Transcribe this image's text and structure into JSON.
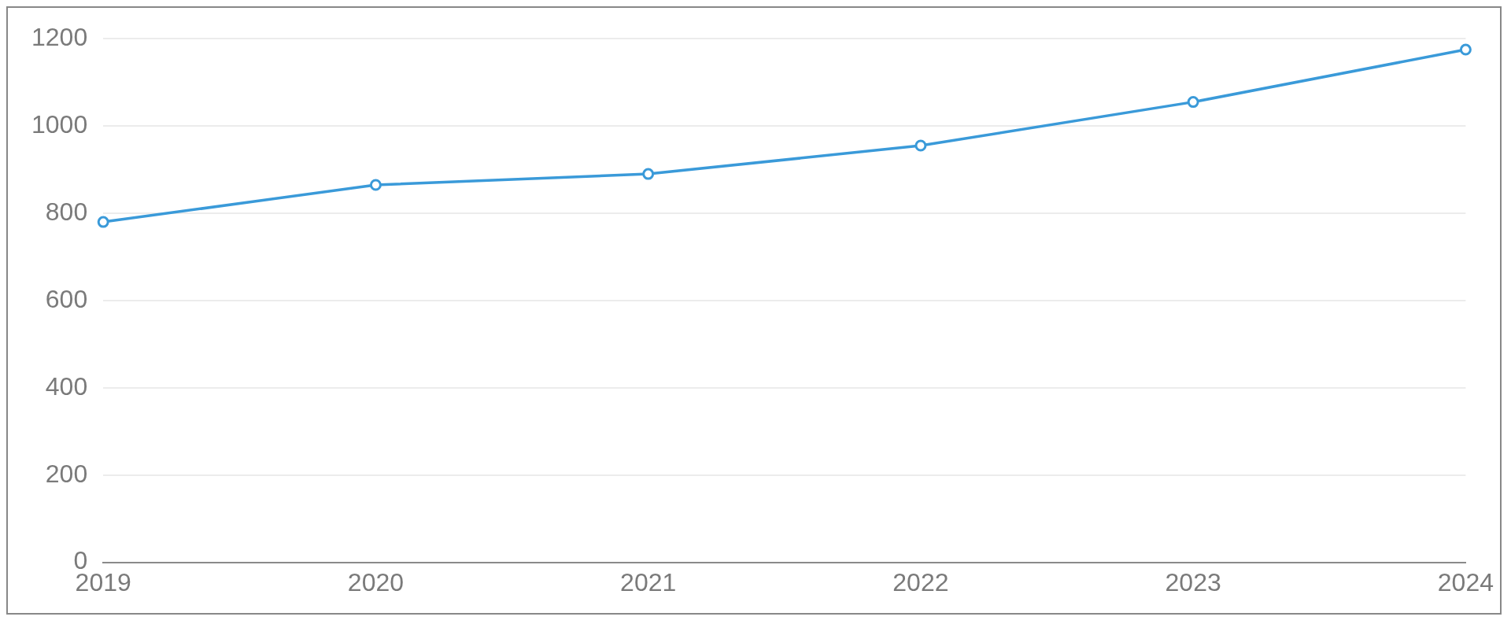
{
  "chart_data": {
    "type": "line",
    "categories": [
      "2019",
      "2020",
      "2021",
      "2022",
      "2023",
      "2024"
    ],
    "series": [
      {
        "color": "#3a9ad9",
        "values": [
          780,
          865,
          890,
          955,
          1055,
          1175
        ]
      }
    ],
    "ylim": [
      0,
      1200
    ],
    "yticks": [
      0,
      200,
      400,
      600,
      800,
      1000,
      1200
    ],
    "grid": "y",
    "marker": "circle",
    "line_style": "solid"
  }
}
